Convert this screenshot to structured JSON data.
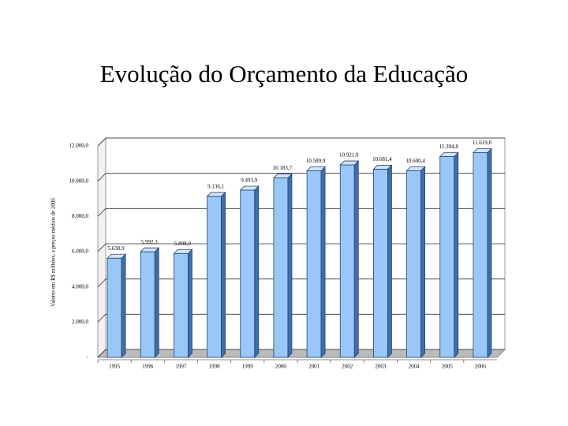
{
  "title": "Evolução do Orçamento da Educação",
  "chart_data": {
    "type": "bar3d",
    "ylabel": "Valores em R$ milhões, a preços médios de 2006",
    "categories": [
      "1995",
      "1996",
      "1997",
      "1998",
      "1999",
      "2000",
      "2001",
      "2002",
      "2003",
      "2004",
      "2005",
      "2006"
    ],
    "values": [
      5630.9,
      5992.3,
      5898.9,
      9136.1,
      9493.9,
      10183.7,
      10589.9,
      10921.9,
      10681.4,
      10600.4,
      11394.8,
      11619.8
    ],
    "value_labels": [
      "5.630,9",
      "5.992,3",
      "5.898,9",
      "9.136,1",
      "9.493,9",
      "10.183,7",
      "10.589,9",
      "10.921,9",
      "10.681,4",
      "10.600,4",
      "11.394,8",
      "11.619,8"
    ],
    "color": "#99c8f8",
    "ylim": [
      0,
      12000
    ],
    "yticks": [
      {
        "value": 0,
        "label": "-"
      },
      {
        "value": 2000,
        "label": "2.000,0"
      },
      {
        "value": 4000,
        "label": "4.000,0"
      },
      {
        "value": 6000,
        "label": "6.000,0"
      },
      {
        "value": 8000,
        "label": "8.000,0"
      },
      {
        "value": 10000,
        "label": "10.000,0"
      },
      {
        "value": 12000,
        "label": "12.000,0"
      }
    ],
    "grid": true
  }
}
